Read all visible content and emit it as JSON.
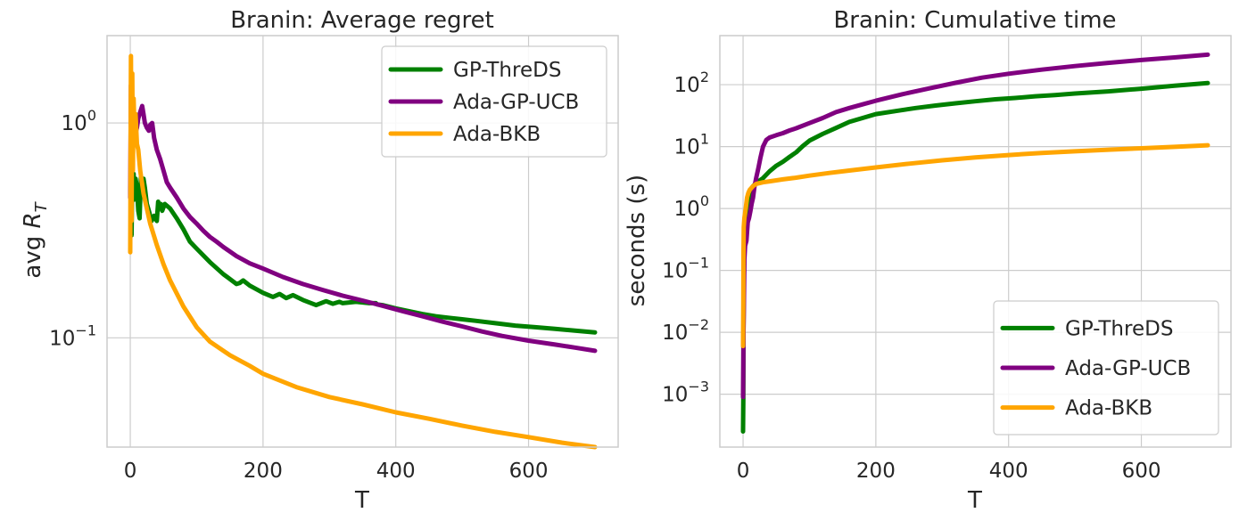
{
  "chart_data": [
    {
      "type": "line",
      "title": "Branin: Average regret",
      "xlabel": "T",
      "ylabel_text": "avg ",
      "ylabel_math": "R",
      "ylabel_sub": "T",
      "yscale": "log",
      "xlim": [
        -35,
        735
      ],
      "ylim": [
        0.031,
        2.55
      ],
      "xticks": [
        0,
        200,
        400,
        600
      ],
      "yticks": [
        {
          "value": 1.0,
          "base": "10",
          "exp": "0"
        },
        {
          "value": 0.1,
          "base": "10",
          "exp": "−1"
        }
      ],
      "legend_loc": "upper right",
      "series": [
        {
          "name": "GP-ThreDS",
          "color": "#008000",
          "x": [
            0,
            1,
            2,
            3,
            4,
            5,
            6,
            8,
            10,
            12,
            14,
            16,
            18,
            20,
            22,
            25,
            28,
            32,
            36,
            40,
            42,
            44,
            46,
            48,
            52,
            56,
            60,
            70,
            80,
            90,
            100,
            120,
            140,
            160,
            165,
            170,
            180,
            200,
            215,
            225,
            235,
            245,
            260,
            280,
            295,
            305,
            315,
            320,
            340,
            360,
            370,
            372,
            380,
            400,
            420,
            440,
            460,
            480,
            500,
            520,
            550,
            580,
            610,
            640,
            670,
            700
          ],
          "y": [
            0.47,
            0.55,
            0.3,
            0.6,
            0.46,
            0.58,
            0.44,
            0.55,
            0.5,
            0.39,
            0.36,
            0.56,
            0.5,
            0.55,
            0.5,
            0.42,
            0.39,
            0.35,
            0.37,
            0.35,
            0.43,
            0.4,
            0.42,
            0.39,
            0.42,
            0.41,
            0.4,
            0.36,
            0.32,
            0.28,
            0.26,
            0.225,
            0.198,
            0.178,
            0.18,
            0.185,
            0.175,
            0.162,
            0.155,
            0.16,
            0.153,
            0.158,
            0.15,
            0.142,
            0.148,
            0.144,
            0.147,
            0.145,
            0.147,
            0.145,
            0.145,
            0.143,
            0.142,
            0.137,
            0.133,
            0.129,
            0.126,
            0.124,
            0.122,
            0.12,
            0.117,
            0.114,
            0.112,
            0.11,
            0.108,
            0.106
          ]
        },
        {
          "name": "Ada-GP-UCB",
          "color": "#800080",
          "x": [
            0,
            1,
            2,
            3,
            4,
            5,
            6,
            8,
            10,
            12,
            14,
            16,
            18,
            20,
            22,
            25,
            28,
            30,
            33,
            36,
            40,
            45,
            50,
            55,
            60,
            70,
            80,
            90,
            100,
            110,
            120,
            130,
            140,
            160,
            180,
            200,
            230,
            260,
            290,
            320,
            350,
            380,
            410,
            440,
            470,
            500,
            530,
            560,
            600,
            640,
            670,
            700
          ],
          "y": [
            0.45,
            1.5,
            1.1,
            0.85,
            0.95,
            0.88,
            1.0,
            0.9,
            0.95,
            1.05,
            1.1,
            1.15,
            1.2,
            1.1,
            1.0,
            0.95,
            0.92,
            0.98,
            1.0,
            0.85,
            0.75,
            0.68,
            0.6,
            0.53,
            0.5,
            0.45,
            0.4,
            0.365,
            0.34,
            0.315,
            0.295,
            0.28,
            0.265,
            0.24,
            0.222,
            0.21,
            0.192,
            0.178,
            0.167,
            0.157,
            0.149,
            0.141,
            0.133,
            0.126,
            0.119,
            0.113,
            0.107,
            0.102,
            0.097,
            0.093,
            0.09,
            0.087
          ]
        },
        {
          "name": "Ada-BKB",
          "color": "#ffa500",
          "x": [
            0,
            1,
            2,
            3,
            4,
            5,
            6,
            8,
            10,
            12,
            15,
            20,
            25,
            30,
            40,
            50,
            60,
            80,
            100,
            120,
            150,
            180,
            200,
            250,
            300,
            350,
            400,
            450,
            500,
            550,
            600,
            650,
            700
          ],
          "y": [
            0.25,
            2.05,
            0.35,
            1.7,
            0.6,
            1.3,
            1.0,
            1.1,
            0.8,
            0.75,
            0.6,
            0.47,
            0.4,
            0.34,
            0.27,
            0.22,
            0.185,
            0.14,
            0.112,
            0.096,
            0.083,
            0.074,
            0.068,
            0.059,
            0.053,
            0.049,
            0.045,
            0.042,
            0.039,
            0.0365,
            0.0345,
            0.0325,
            0.031
          ]
        }
      ]
    },
    {
      "type": "line",
      "title": "Branin: Cumulative time",
      "xlabel": "T",
      "ylabel": "seconds (s)",
      "yscale": "log",
      "xlim": [
        -35,
        735
      ],
      "ylim": [
        0.00014,
        620
      ],
      "xticks": [
        0,
        200,
        400,
        600
      ],
      "yticks": [
        {
          "value": 0.001,
          "base": "10",
          "exp": "−3"
        },
        {
          "value": 0.01,
          "base": "10",
          "exp": "−2"
        },
        {
          "value": 0.1,
          "base": "10",
          "exp": "−1"
        },
        {
          "value": 1,
          "base": "10",
          "exp": "0"
        },
        {
          "value": 10,
          "base": "10",
          "exp": "1"
        },
        {
          "value": 100,
          "base": "10",
          "exp": "2"
        }
      ],
      "legend_loc": "lower right",
      "series": [
        {
          "name": "GP-ThreDS",
          "color": "#008000",
          "x": [
            0,
            0.3,
            0.6,
            1,
            2,
            3,
            5,
            8,
            10,
            15,
            20,
            30,
            40,
            50,
            60,
            70,
            80,
            90,
            100,
            120,
            140,
            160,
            180,
            200,
            230,
            260,
            290,
            320,
            350,
            380,
            410,
            440,
            470,
            500,
            550,
            600,
            650,
            700
          ],
          "y": [
            0.00025,
            0.0008,
            0.01,
            0.05,
            0.3,
            0.4,
            0.9,
            1.4,
            1.9,
            2.3,
            2.6,
            3.1,
            4.0,
            4.9,
            5.7,
            6.8,
            8.1,
            10.2,
            12.5,
            16.0,
            20.0,
            25.0,
            29.0,
            33.5,
            37.5,
            42.0,
            46.0,
            50.0,
            54.0,
            58.0,
            61.0,
            65.0,
            68.0,
            72.0,
            78.0,
            86.0,
            96.0,
            106.0
          ]
        },
        {
          "name": "Ada-GP-UCB",
          "color": "#800080",
          "x": [
            0,
            0.3,
            0.6,
            1,
            2,
            3,
            5,
            7,
            9,
            11,
            13,
            15,
            17,
            20,
            23,
            26,
            30,
            35,
            40,
            50,
            60,
            70,
            80,
            100,
            120,
            140,
            160,
            180,
            200,
            240,
            280,
            320,
            360,
            400,
            450,
            500,
            550,
            600,
            650,
            700
          ],
          "y": [
            0.0009,
            0.003,
            0.01,
            0.02,
            0.15,
            0.25,
            0.3,
            0.6,
            0.7,
            0.9,
            1.2,
            1.5,
            2.2,
            3.2,
            4.5,
            6.5,
            10.0,
            12.8,
            14.0,
            15.3,
            16.5,
            18.2,
            19.8,
            24.0,
            29.0,
            36.0,
            42.0,
            48.0,
            55.0,
            70.0,
            87.0,
            107.0,
            130.0,
            150.0,
            175.0,
            200.0,
            225.0,
            250.0,
            275.0,
            305.0
          ]
        },
        {
          "name": "Ada-BKB",
          "color": "#ffa500",
          "x": [
            0,
            0.3,
            0.6,
            1,
            2,
            4,
            6,
            8,
            10,
            15,
            20,
            30,
            40,
            60,
            80,
            100,
            130,
            160,
            200,
            250,
            300,
            350,
            400,
            450,
            500,
            550,
            600,
            650,
            700
          ],
          "y": [
            0.006,
            0.03,
            0.2,
            0.5,
            0.7,
            1.0,
            1.5,
            1.8,
            2.0,
            2.3,
            2.5,
            2.65,
            2.75,
            2.95,
            3.15,
            3.4,
            3.75,
            4.1,
            4.6,
            5.3,
            6.0,
            6.7,
            7.3,
            7.9,
            8.4,
            8.9,
            9.4,
            9.9,
            10.5
          ]
        }
      ]
    }
  ]
}
